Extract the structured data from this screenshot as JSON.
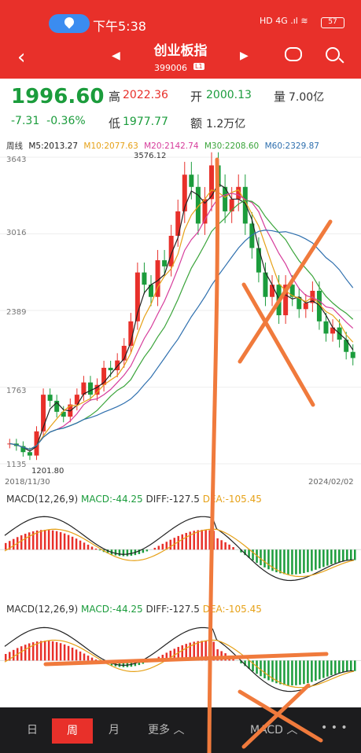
{
  "status": {
    "time": "下午5:38",
    "icons": "HD 4G .ıl  ≋",
    "battery": "57"
  },
  "header": {
    "title": "创业板指",
    "code": "399006",
    "badge": "L1"
  },
  "quote": {
    "price": "1996.60",
    "change": "-7.31",
    "change_pct": "-0.36%",
    "high_label": "高",
    "high": "2022.36",
    "open_label": "开",
    "open": "2000.13",
    "volume_label": "量",
    "volume": "7.00亿",
    "low_label": "低",
    "low": "1977.77",
    "amount_label": "额",
    "amount": "1.2万亿"
  },
  "legend": {
    "period": "周线",
    "ma5": "M5:2013.27",
    "ma10": "M10:2077.63",
    "ma20": "M20:2142.74",
    "ma30": "M30:2208.60",
    "ma60": "M60:2329.87"
  },
  "chart_data": {
    "type": "candlestick",
    "y_ticks": [
      "3643",
      "3016",
      "2389",
      "1763",
      "1135"
    ],
    "max_label": "3576.12",
    "min_label": "1201.80",
    "x_start": "2018/11/30",
    "x_end": "2024/02/02",
    "close_approx": [
      1300,
      1280,
      1230,
      1202,
      1400,
      1700,
      1650,
      1560,
      1520,
      1620,
      1700,
      1800,
      1700,
      1780,
      1920,
      1900,
      1980,
      2100,
      2300,
      2700,
      2600,
      2500,
      2800,
      2750,
      3000,
      3200,
      3500,
      3400,
      3100,
      3300,
      3576,
      3400,
      3200,
      3300,
      3400,
      3100,
      2900,
      2700,
      2500,
      2600,
      2350,
      2600,
      2500,
      2400,
      2450,
      2550,
      2300,
      2200,
      2250,
      2150,
      2050,
      2000
    ]
  },
  "macd": {
    "label": "MACD(12,26,9)",
    "macd": "MACD:-44.25",
    "diff": "DIFF:-127.5",
    "dea": "DEA:-105.45"
  },
  "tabs": {
    "day": "日",
    "week": "周",
    "month": "月",
    "more": "更多 ︿",
    "indicator": "MACD ︿",
    "dots": "• • •"
  },
  "colors": {
    "red": "#e8302a",
    "green": "#1b9c3c",
    "ma5": "#222222",
    "ma10": "#e6a117",
    "ma20": "#d63c9b",
    "ma30": "#3aa43a",
    "ma60": "#2e6fae"
  }
}
